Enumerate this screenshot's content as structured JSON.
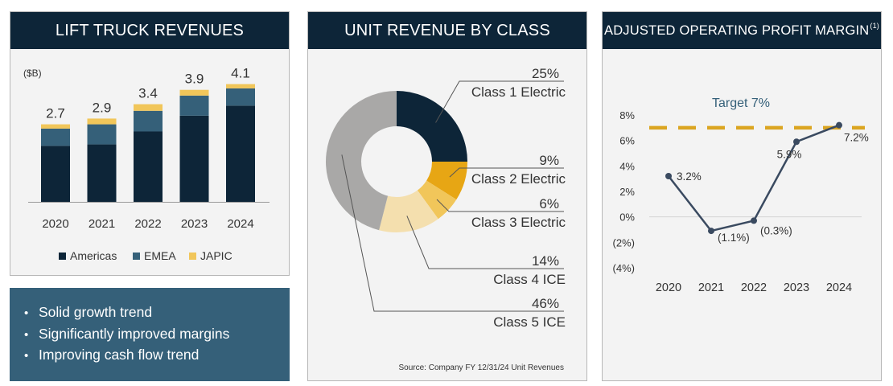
{
  "panels": {
    "revenues": {
      "title": "LIFT TRUCK REVENUES"
    },
    "unit_revenue": {
      "title": "UNIT REVENUE BY CLASS",
      "source": "Source: Company FY 12/31/24 Unit Revenues"
    },
    "margin": {
      "title": "ADJUSTED OPERATING PROFIT MARGIN",
      "title_superscript": "(1)"
    }
  },
  "notes": [
    "Solid growth trend",
    "Significantly improved margins",
    "Improving cash flow trend"
  ],
  "colors": {
    "navy": "#0d2538",
    "steel": "#356079",
    "gold": "#e7a614",
    "light_gold": "#f1c65a",
    "cream": "#f4dfae",
    "gray": "#a9a8a7",
    "line": "#3a4a60",
    "target": "#dba521"
  },
  "chart_data": [
    {
      "type": "bar",
      "stacked": true,
      "ylabel": "($B)",
      "categories": [
        "2020",
        "2021",
        "2022",
        "2023",
        "2024"
      ],
      "series": [
        {
          "name": "Americas",
          "color": "#0d2538",
          "values": [
            1.95,
            2.0,
            2.45,
            3.0,
            3.35
          ]
        },
        {
          "name": "EMEA",
          "color": "#356079",
          "values": [
            0.6,
            0.7,
            0.72,
            0.7,
            0.6
          ]
        },
        {
          "name": "JAPIC",
          "color": "#f1c65a",
          "values": [
            0.15,
            0.2,
            0.23,
            0.2,
            0.15
          ]
        }
      ],
      "totals": [
        "2.7",
        "2.9",
        "3.4",
        "3.9",
        "4.1"
      ],
      "ylim": [
        0,
        4.2
      ],
      "legend": "bottom"
    },
    {
      "type": "pie",
      "donut": true,
      "slices": [
        {
          "label": "Class 1 Electric",
          "pct_label": "25%",
          "value": 25,
          "color": "#0d2538"
        },
        {
          "label": "Class 2 Electric",
          "pct_label": "9%",
          "value": 9,
          "color": "#e7a614"
        },
        {
          "label": "Class 3 Electric",
          "pct_label": "6%",
          "value": 6,
          "color": "#f1c65a"
        },
        {
          "label": "Class 4 ICE",
          "pct_label": "14%",
          "value": 14,
          "color": "#f4dfae"
        },
        {
          "label": "Class 5 ICE",
          "pct_label": "46%",
          "value": 46,
          "color": "#a9a8a7"
        }
      ]
    },
    {
      "type": "line",
      "x": [
        "2020",
        "2021",
        "2022",
        "2023",
        "2024"
      ],
      "series": [
        {
          "values": [
            3.2,
            -1.1,
            -0.3,
            5.9,
            7.2
          ],
          "labels": [
            "3.2%",
            "(1.1%)",
            "(0.3%)",
            "5.9%",
            "7.2%"
          ]
        }
      ],
      "yticks": [
        8,
        6,
        4,
        2,
        0,
        -2,
        -4
      ],
      "ytick_labels": [
        "8%",
        "6%",
        "4%",
        "2%",
        "0%",
        "(2%)",
        "(4%)"
      ],
      "ylim": [
        -4,
        8
      ],
      "target": {
        "value": 7,
        "label": "Target 7%"
      }
    }
  ]
}
